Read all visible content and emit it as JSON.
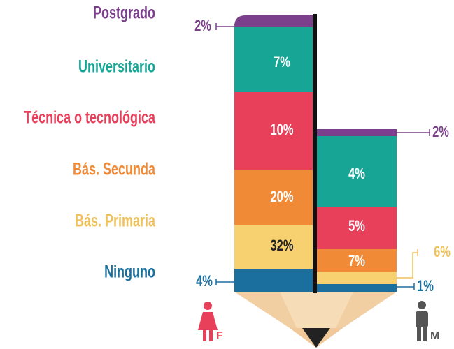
{
  "categories": [
    {
      "name": "Postgrado",
      "color": "#7b3f8c",
      "female": "2%",
      "male": "2%"
    },
    {
      "name": "Universitario",
      "color": "#17a595",
      "female": "7%",
      "male": "4%"
    },
    {
      "name": "Técnica o tecnológica",
      "color": "#e83f5b",
      "female": "10%",
      "male": "5%"
    },
    {
      "name": "Bás. Secunda",
      "color": "#f08a36",
      "female": "20%",
      "male": "7%"
    },
    {
      "name": "Bás. Primaria",
      "color": "#f7d070",
      "female": "32%",
      "male": "6%"
    },
    {
      "name": "Ninguno",
      "color": "#1b6f9e",
      "female": "4%",
      "male": "1%"
    }
  ],
  "female_label": "F",
  "male_label": "M"
}
